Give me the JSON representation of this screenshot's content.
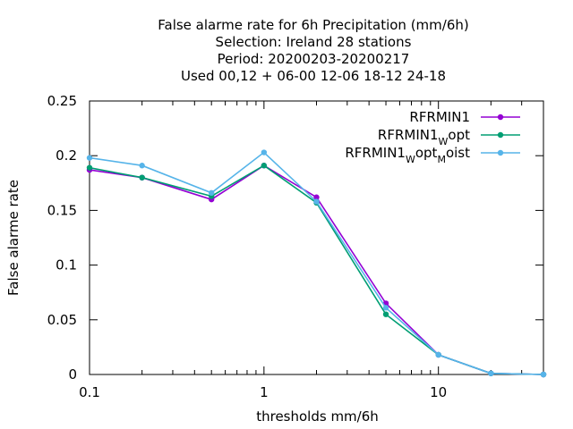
{
  "chart_data": {
    "type": "line",
    "title_lines": [
      "False alarme rate  for 6h Precipitation (mm/6h)",
      "Selection: Ireland     28 stations",
      "Period: 20200203-20200217",
      "Used  00,12  + 06-00 12-06 18-12 24-18"
    ],
    "xlabel": "thresholds mm/6h",
    "ylabel": "False alarme rate",
    "x_scale": "log",
    "xlim": [
      0.1,
      40
    ],
    "ylim": [
      0,
      0.25
    ],
    "x_ticks": [
      {
        "value": 0.1,
        "label": "0.1"
      },
      {
        "value": 1,
        "label": "1"
      },
      {
        "value": 10,
        "label": "10"
      }
    ],
    "y_ticks": [
      {
        "value": 0,
        "label": "0"
      },
      {
        "value": 0.05,
        "label": "0.05"
      },
      {
        "value": 0.1,
        "label": "0.1"
      },
      {
        "value": 0.15,
        "label": "0.15"
      },
      {
        "value": 0.2,
        "label": "0.2"
      },
      {
        "value": 0.25,
        "label": "0.25"
      }
    ],
    "x": [
      0.1,
      0.2,
      0.5,
      1,
      2,
      5,
      10,
      20,
      40
    ],
    "series": [
      {
        "name": "RFRMIN1",
        "legend": {
          "main": "RFRMIN1",
          "subs": []
        },
        "color": "#9400d3",
        "values": [
          0.187,
          0.18,
          0.16,
          0.191,
          0.162,
          0.065,
          0.018,
          0.001,
          0.0
        ]
      },
      {
        "name": "RFRMIN1_Wopt",
        "legend": {
          "main": "RFRMIN1",
          "subs": [
            {
              "sub": "W",
              "text": "opt"
            }
          ]
        },
        "color": "#009e73",
        "values": [
          0.189,
          0.18,
          0.163,
          0.191,
          0.157,
          0.055,
          0.018,
          0.001,
          0.0
        ]
      },
      {
        "name": "RFRMIN1_Wopt_Moist",
        "legend": {
          "main": "RFRMIN1",
          "subs": [
            {
              "sub": "W",
              "text": "opt"
            },
            {
              "sub": "M",
              "text": "oist"
            }
          ]
        },
        "color": "#56b4e9",
        "values": [
          0.198,
          0.191,
          0.166,
          0.203,
          0.158,
          0.061,
          0.018,
          0.001,
          0.0
        ]
      }
    ],
    "grid": false,
    "legend_position": "top-right"
  }
}
